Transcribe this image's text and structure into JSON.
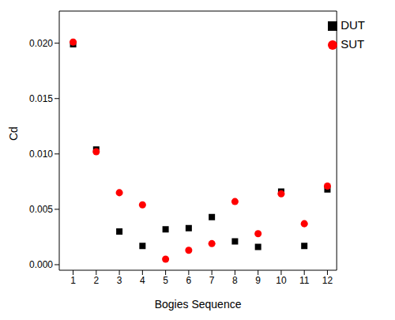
{
  "chart_data": {
    "type": "scatter",
    "x_label": "Bogies Sequence",
    "y_label": "Cd",
    "xlim": [
      0.4,
      12.4
    ],
    "xticks": [
      1,
      2,
      3,
      4,
      5,
      6,
      7,
      8,
      9,
      10,
      11,
      12
    ],
    "ylim": [
      -0.0005,
      0.0229
    ],
    "yticks": [
      {
        "value": 0,
        "label": "0.000"
      },
      {
        "value": 0.005,
        "label": "0.005"
      },
      {
        "value": 0.01,
        "label": "0.010"
      },
      {
        "value": 0.015,
        "label": "0.015"
      },
      {
        "value": 0.02,
        "label": "0.020"
      }
    ],
    "legend": "upper right",
    "grid": false,
    "x": [
      1,
      2,
      3,
      4,
      5,
      6,
      7,
      8,
      9,
      10,
      11,
      12
    ],
    "series": [
      {
        "name": "DUT",
        "color": "#000000",
        "marker": "square",
        "values": [
          0.0199,
          0.0104,
          0.003,
          0.0017,
          0.0032,
          0.0033,
          0.0043,
          0.0021,
          0.0016,
          0.0066,
          0.0017,
          0.0068
        ]
      },
      {
        "name": "SUT",
        "color": "#ff0000",
        "marker": "circle",
        "values": [
          0.0201,
          0.0102,
          0.0065,
          0.0054,
          0.0005,
          0.0013,
          0.0019,
          0.0057,
          0.0028,
          0.0064,
          0.0037,
          0.0071
        ]
      }
    ]
  }
}
